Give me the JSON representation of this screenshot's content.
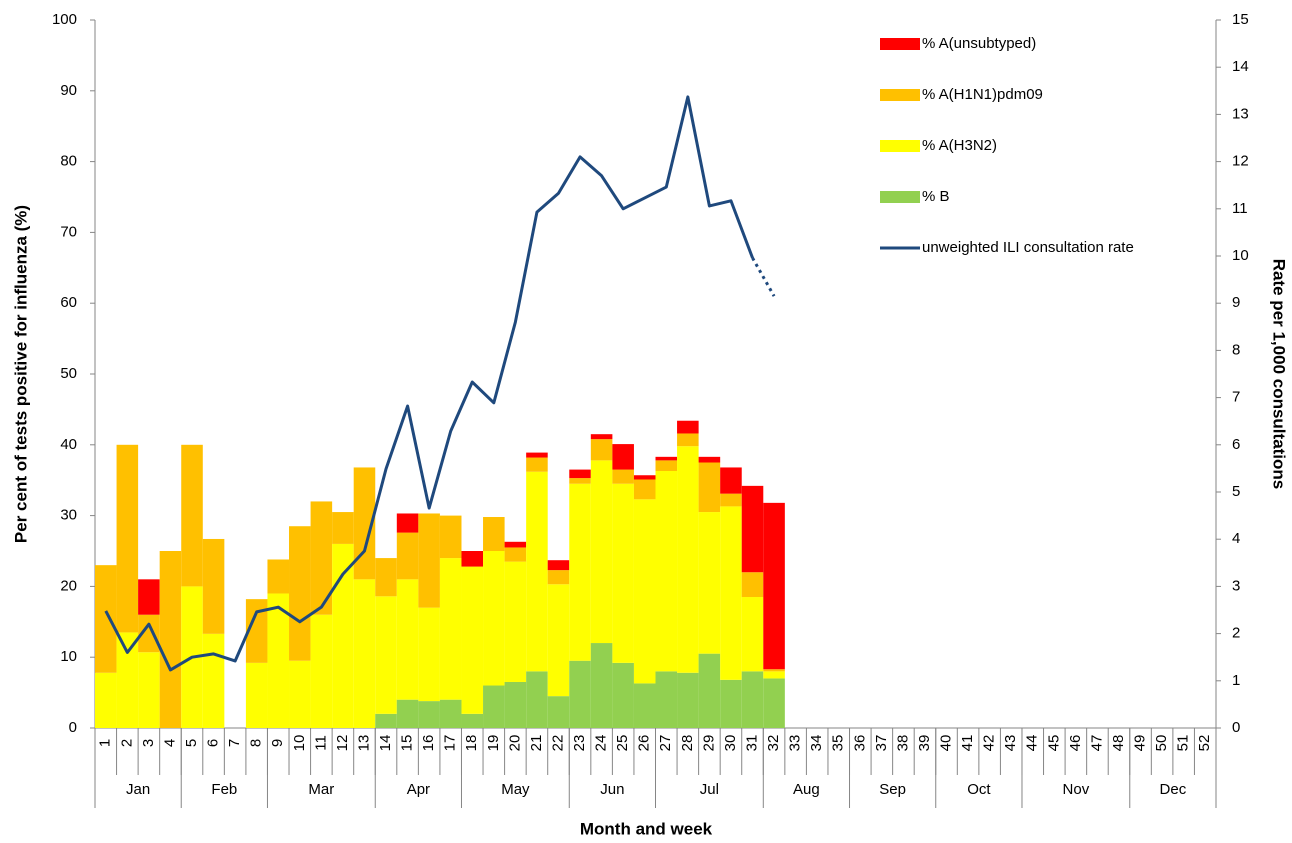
{
  "chart_data": {
    "type": "bar",
    "stacked": true,
    "x_label": "Month and week",
    "y_label": "Per cent of tests positive for influenza (%)",
    "y2_label": "Rate per 1,000 consultations",
    "categories": [
      "1",
      "2",
      "3",
      "4",
      "5",
      "6",
      "7",
      "8",
      "9",
      "10",
      "11",
      "12",
      "13",
      "14",
      "15",
      "16",
      "17",
      "18",
      "19",
      "20",
      "21",
      "22",
      "23",
      "24",
      "25",
      "26",
      "27",
      "28",
      "29",
      "30",
      "31",
      "32",
      "33",
      "34",
      "35",
      "36",
      "37",
      "38",
      "39",
      "40",
      "41",
      "42",
      "43",
      "44",
      "45",
      "46",
      "47",
      "48",
      "49",
      "50",
      "51",
      "52"
    ],
    "months": [
      {
        "name": "Jan",
        "weeks": 4
      },
      {
        "name": "Feb",
        "weeks": 4
      },
      {
        "name": "Mar",
        "weeks": 5
      },
      {
        "name": "Apr",
        "weeks": 4
      },
      {
        "name": "May",
        "weeks": 5
      },
      {
        "name": "Jun",
        "weeks": 4
      },
      {
        "name": "Jul",
        "weeks": 5
      },
      {
        "name": "Aug",
        "weeks": 4
      },
      {
        "name": "Sep",
        "weeks": 4
      },
      {
        "name": "Oct",
        "weeks": 4
      },
      {
        "name": "Nov",
        "weeks": 5
      },
      {
        "name": "Dec",
        "weeks": 4
      }
    ],
    "ylim": [
      0,
      100
    ],
    "yticks": [
      0,
      10,
      20,
      30,
      40,
      50,
      60,
      70,
      80,
      90,
      100
    ],
    "y2lim": [
      0,
      15
    ],
    "y2ticks": [
      0,
      1,
      2,
      3,
      4,
      5,
      6,
      7,
      8,
      9,
      10,
      11,
      12,
      13,
      14,
      15
    ],
    "grid": false,
    "legend_position": "upper-right",
    "series": [
      {
        "name": "% A(unsubtyped)",
        "color": "#ff0000",
        "values": [
          0,
          0,
          5,
          0,
          0,
          0,
          0,
          0,
          0,
          0,
          0,
          0,
          0,
          0,
          2.7,
          0,
          0,
          2.2,
          0,
          0.8,
          0.7,
          1.4,
          1.2,
          0.7,
          3.6,
          0.6,
          0.5,
          1.8,
          0.8,
          3.7,
          12.2,
          23.5,
          null,
          null,
          null,
          null,
          null,
          null,
          null,
          null,
          null,
          null,
          null,
          null,
          null,
          null,
          null,
          null,
          null,
          null,
          null,
          null
        ]
      },
      {
        "name": "% A(H1N1)pdm09",
        "color": "#ffc000",
        "values": [
          15.2,
          26.5,
          5.3,
          25,
          20,
          13.4,
          0,
          9,
          4.8,
          19,
          16,
          4.5,
          15.8,
          5.4,
          6.6,
          13.3,
          6,
          0,
          4.8,
          2,
          2,
          2,
          0.8,
          3,
          2,
          2.8,
          1.5,
          1.8,
          7,
          1.8,
          3.5,
          0.3,
          null,
          null,
          null,
          null,
          null,
          null,
          null,
          null,
          null,
          null,
          null,
          null,
          null,
          null,
          null,
          null,
          null,
          null,
          null,
          null
        ]
      },
      {
        "name": "% A(H3N2)",
        "color": "#ffff00",
        "values": [
          7.8,
          13.5,
          10.7,
          0,
          20,
          13.3,
          0,
          9.2,
          19,
          9.5,
          16,
          26,
          21,
          16.6,
          17,
          13.2,
          20,
          20.8,
          19,
          17,
          28.2,
          15.8,
          25,
          25.8,
          25.3,
          26,
          28.3,
          32,
          20,
          24.5,
          10.5,
          1,
          null,
          null,
          null,
          null,
          null,
          null,
          null,
          null,
          null,
          null,
          null,
          null,
          null,
          null,
          null,
          null,
          null,
          null,
          null,
          null
        ]
      },
      {
        "name": "% B",
        "color": "#92d050",
        "values": [
          0,
          0,
          0,
          0,
          0,
          0,
          0,
          0,
          0,
          0,
          0,
          0,
          0,
          2,
          4,
          3.8,
          4,
          2,
          6,
          6.5,
          8,
          4.5,
          9.5,
          12,
          9.2,
          6.3,
          8,
          7.8,
          10.5,
          6.8,
          8,
          7,
          null,
          null,
          null,
          null,
          null,
          null,
          null,
          null,
          null,
          null,
          null,
          null,
          null,
          null,
          null,
          null,
          null,
          null,
          null,
          null
        ]
      },
      {
        "name": "unweighted ILI consultation rate",
        "color": "#1f497d",
        "type": "line",
        "axis": "y2",
        "dotted_last_segment": true,
        "values": [
          2.48,
          1.6,
          2.2,
          1.23,
          1.5,
          1.57,
          1.42,
          2.46,
          2.56,
          2.25,
          2.56,
          3.26,
          3.75,
          5.49,
          6.82,
          4.66,
          6.29,
          7.33,
          6.89,
          8.6,
          10.93,
          11.33,
          12.1,
          11.7,
          11.0,
          11.23,
          11.46,
          13.37,
          11.06,
          11.17,
          9.96,
          9.15,
          null,
          null,
          null,
          null,
          null,
          null,
          null,
          null,
          null,
          null,
          null,
          null,
          null,
          null,
          null,
          null,
          null,
          null,
          null,
          null
        ]
      }
    ]
  }
}
